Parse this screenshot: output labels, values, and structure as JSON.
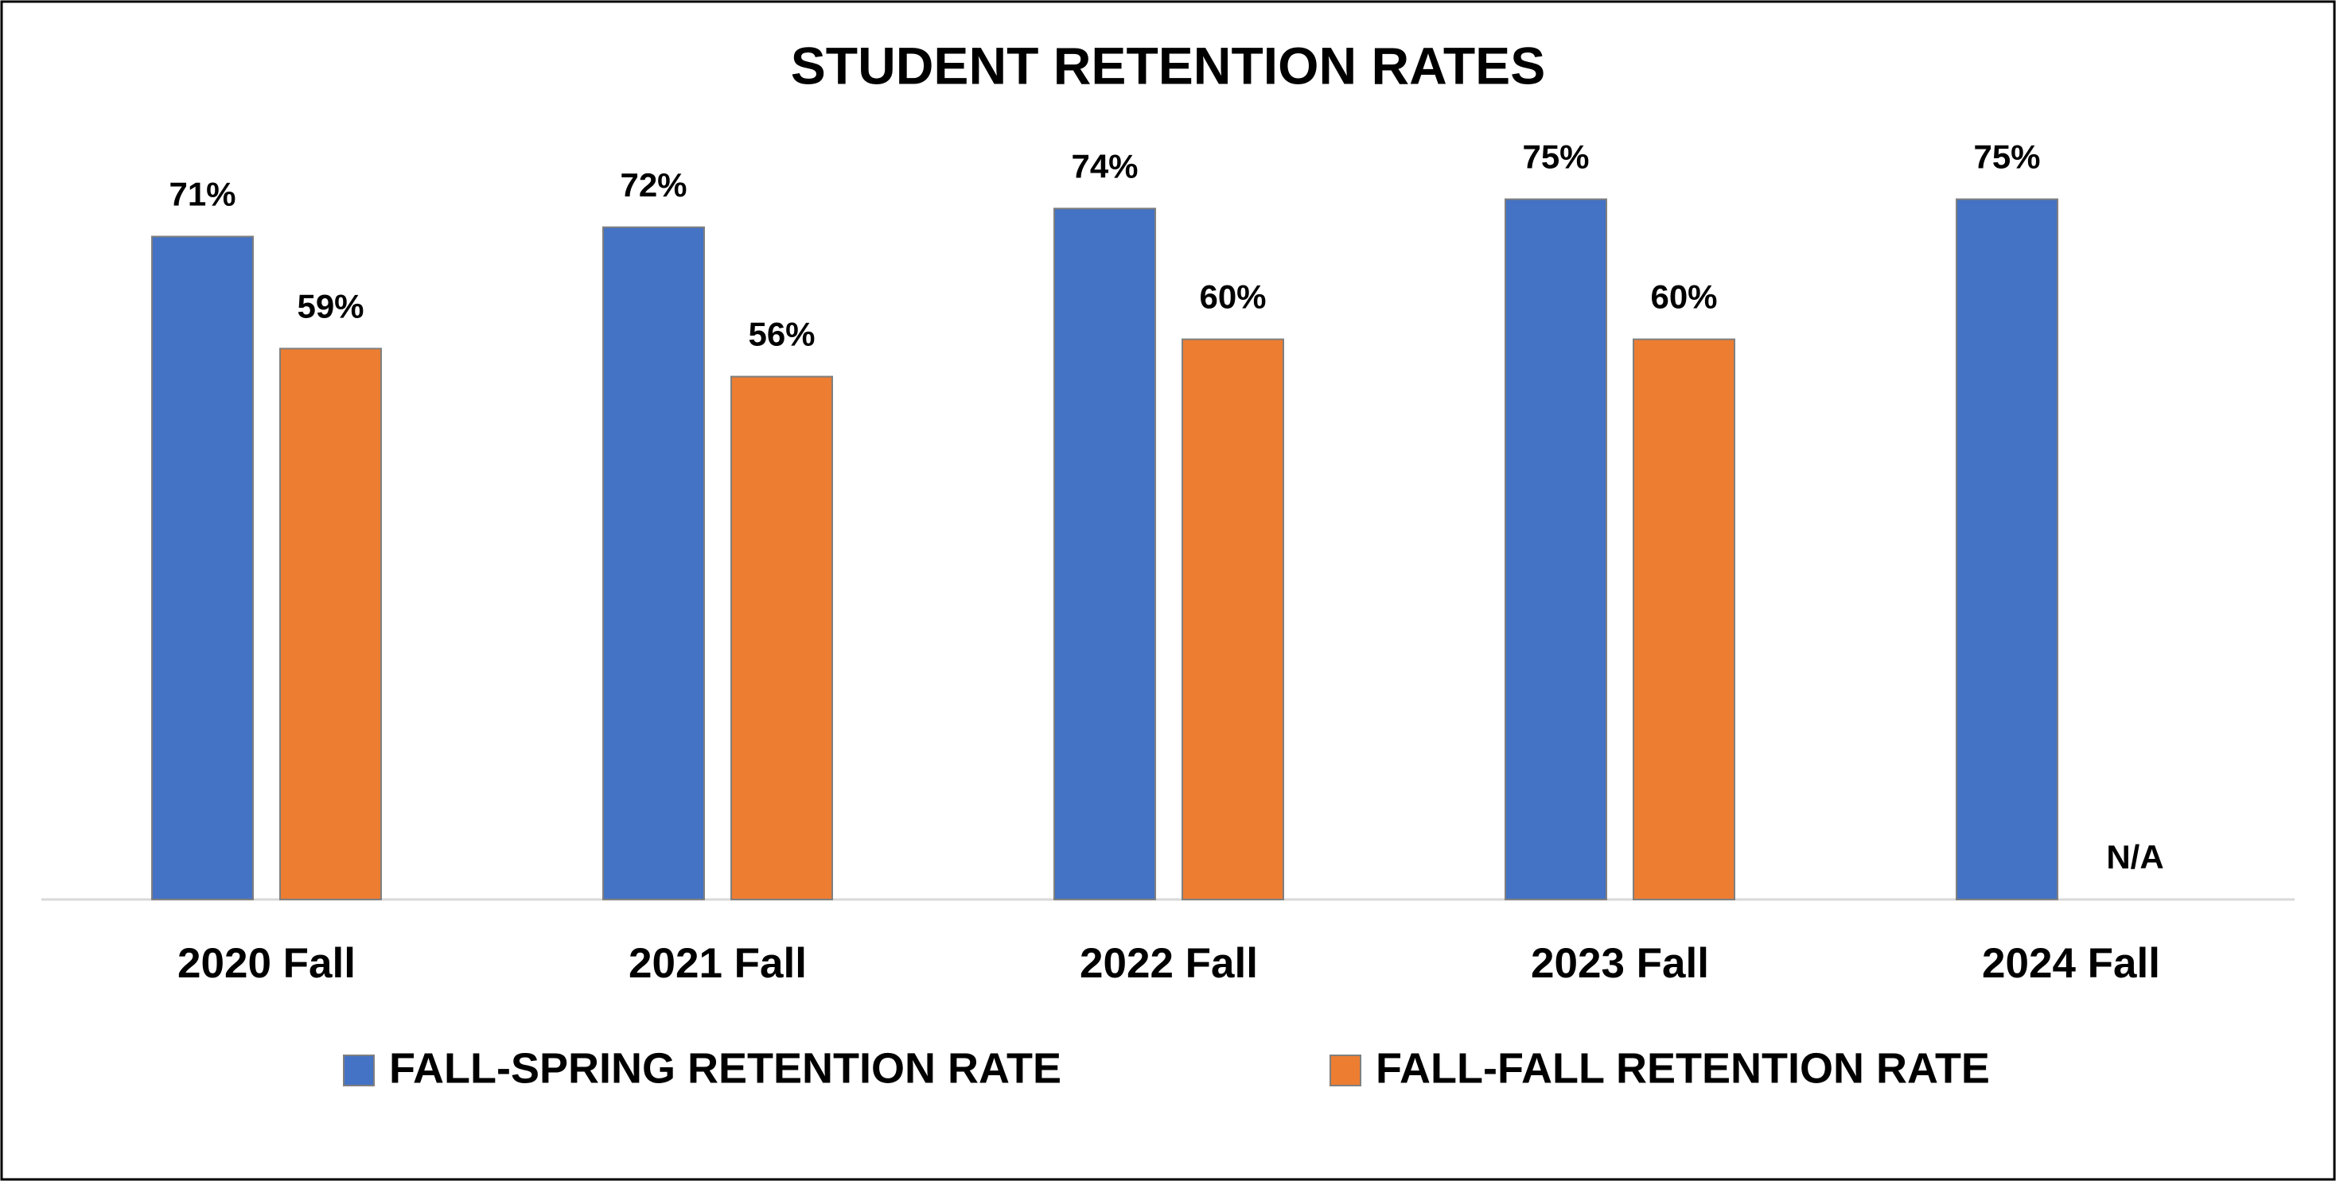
{
  "chart_data": {
    "type": "bar",
    "title": "STUDENT RETENTION RATES",
    "categories": [
      "2020 Fall",
      "2021 Fall",
      "2022 Fall",
      "2023 Fall",
      "2024 Fall"
    ],
    "series": [
      {
        "name": "FALL-SPRING RETENTION RATE",
        "color": "#4472c4",
        "values": [
          71,
          72,
          74,
          75,
          75
        ],
        "value_labels": [
          "71%",
          "72%",
          "74%",
          "75%",
          "75%"
        ]
      },
      {
        "name": "FALL-FALL RETENTION RATE",
        "color": "#ed7d31",
        "values": [
          59,
          56,
          60,
          60,
          null
        ],
        "value_labels": [
          "59%",
          "56%",
          "60%",
          "60%",
          "N/A"
        ]
      }
    ],
    "ylim": [
      0,
      100
    ]
  }
}
